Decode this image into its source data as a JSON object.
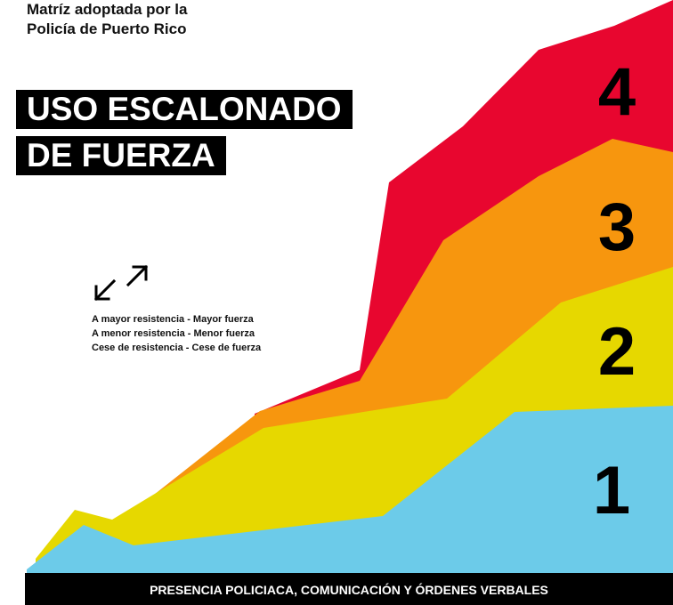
{
  "header": {
    "subtitle_line1": "Matríz adoptada por la",
    "subtitle_line2": "Policía de Puerto Rico",
    "title_line1": "USO ESCALONADO",
    "title_line2": "DE FUERZA"
  },
  "legend": {
    "icon": "diagonal-arrows-icon",
    "lines": [
      "A mayor resistencia - Mayor fuerza",
      "A menor resistencia - Menor fuerza",
      "Cese de resistencia - Cese de fuerza"
    ]
  },
  "levels": [
    {
      "label": "1",
      "color": "#6ccbe9"
    },
    {
      "label": "2",
      "color": "#e6d800"
    },
    {
      "label": "3",
      "color": "#f7960e"
    },
    {
      "label": "4",
      "color": "#e8062f"
    }
  ],
  "footer": {
    "label": "PRESENCIA POLICIACA, COMUNICACIÓN Y ÓRDENES VERBALES"
  },
  "colors": {
    "background": "#ffffff",
    "bars": "#000000",
    "text_on_dark": "#ffffff"
  }
}
